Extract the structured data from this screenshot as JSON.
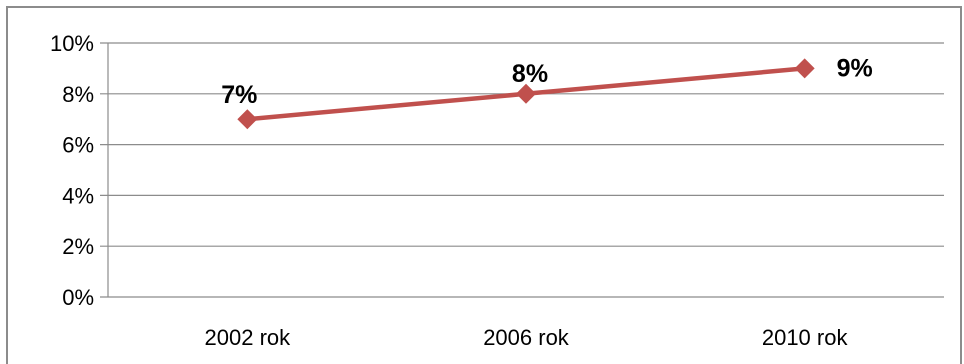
{
  "chart_data": {
    "type": "line",
    "categories": [
      "2002 rok",
      "2006 rok",
      "2010 rok"
    ],
    "series": [
      {
        "values": [
          7,
          8,
          9
        ],
        "data_labels": [
          "7%",
          "8%",
          "9%"
        ],
        "color": "#c0504d",
        "marker": "diamond"
      }
    ],
    "ylim": [
      0,
      10
    ],
    "yticks": [
      0,
      2,
      4,
      6,
      8,
      10
    ],
    "ytick_labels": [
      "0%",
      "2%",
      "4%",
      "6%",
      "8%",
      "10%"
    ],
    "grid": true,
    "gridline_color": "#8c8c8c",
    "legend": "none",
    "title": "",
    "xlabel": "",
    "ylabel": ""
  }
}
